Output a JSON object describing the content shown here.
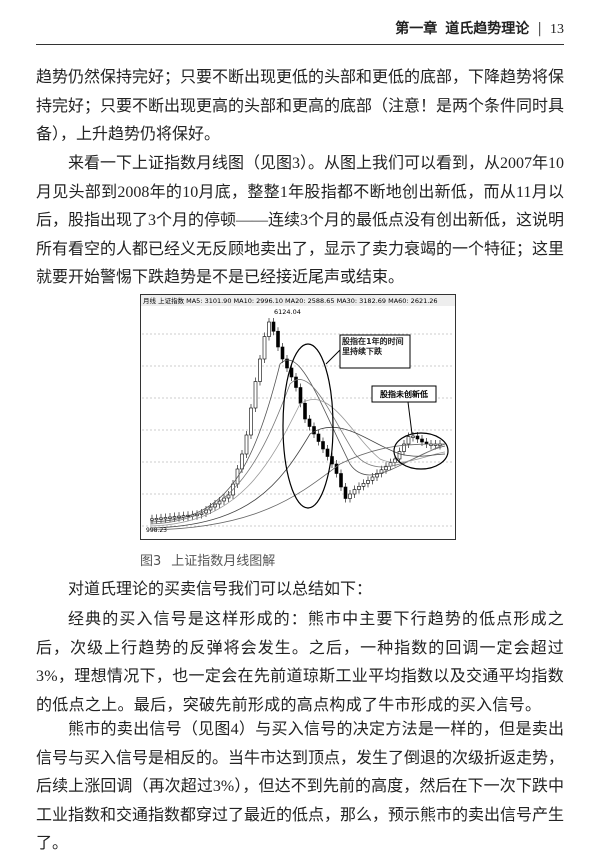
{
  "header": {
    "chapter": "第一章",
    "title": "道氏趋势理论",
    "page": "13"
  },
  "paragraphs": [
    "趋势仍然保持完好；只要不断出现更低的头部和更低的底部，下降趋势将保持完好；只要不断出现更高的头部和更高的底部（注意！是两个条件同时具备），上升趋势仍将保好。",
    "来看一下上证指数月线图（见图3）。从图上我们可以看到，从2007年10月见头部到2008年的10月底，整整1年股指都不断地创出新低，而从11月以后，股指出现了3个月的停顿——连续3个月的最低点没有创出新低，这说明所有看空的人都已经义无反顾地卖出了，显示了卖力衰竭的一个特征；这里就要开始警惕下跌趋势是不是已经接近尾声或结束。"
  ],
  "figure": {
    "legend": "月线  上证指数  MA5: 3101.90  MA10: 2996.10  MA20: 2588.65  MA30: 3182.69  MA60: 2621.26",
    "high_label": "6124.04",
    "low_label": "998.23",
    "annotation_1": "股指在1年的时间里持续下跌",
    "annotation_2": "股指未创新低",
    "caption_number": "图3",
    "caption": "上证指数月线图解"
  },
  "summary": "对道氏理论的买卖信号我们可以总结如下：",
  "buy_signal": "经典的买入信号是这样形成的：熊市中主要下行趋势的低点形成之后，次级上行趋势的反弹将会发生。之后，一种指数的回调一定会超过3%，理想情况下，也一定会在先前道琼斯工业平均指数以及交通平均指数的低点之上。最后，突破先前形成的高点构成了牛市形成的买入信号。",
  "sell_signal": "熊市的卖出信号（见图4）与买入信号的决定方法是一样的，但是卖出信号与买入信号是相反的。当牛市达到顶点，发生了倒退的次级折返走势，后续上涨回调（再次超过3%），但达不到先前的高度，然后在下一次下跌中工业指数和交通指数都穿过了最近的低点，那么，预示熊市的卖出信号产生了。"
}
